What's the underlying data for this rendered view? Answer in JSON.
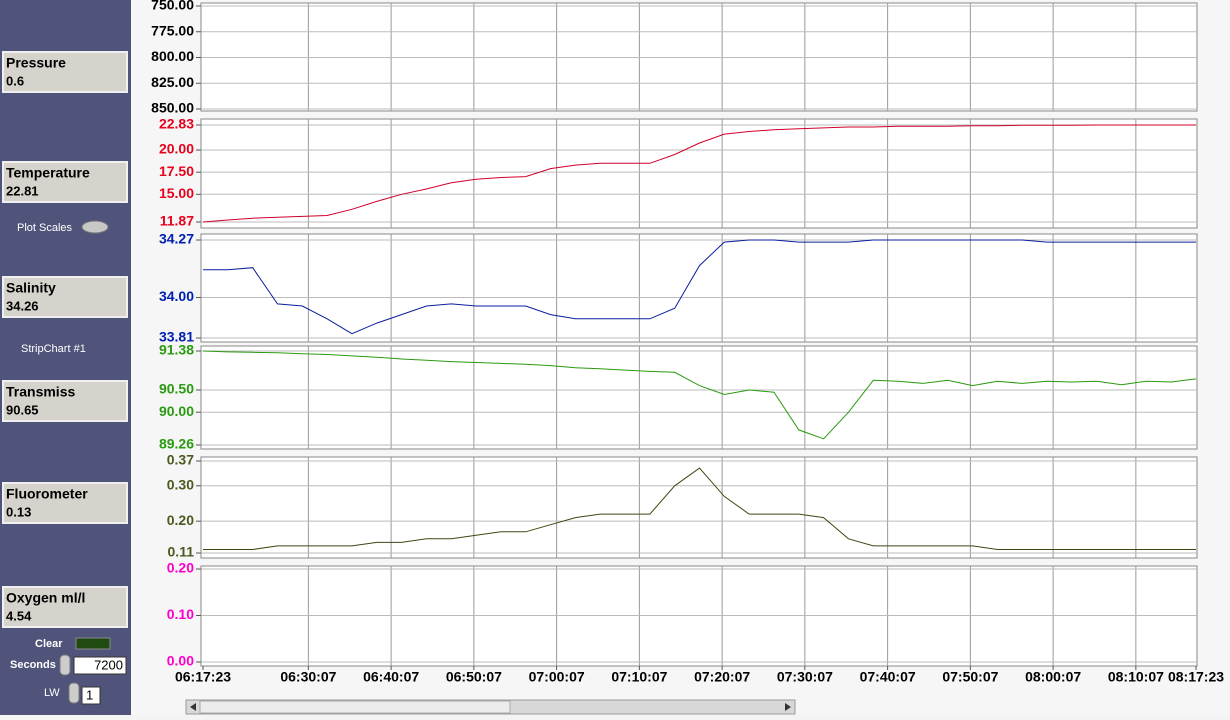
{
  "panel": {
    "readouts": [
      {
        "label": "Pressure",
        "value": 0.6
      },
      {
        "label": "Temperature",
        "value": 22.81
      },
      {
        "label": "Salinity",
        "value": 34.26
      },
      {
        "label": "Transmiss",
        "value": 90.65
      },
      {
        "label": "Fluorometer",
        "value": 0.13
      },
      {
        "label": "Oxygen ml/l",
        "value": 4.54
      }
    ],
    "plot_scales": "Plot Scales",
    "stripchart": "StripChart #1",
    "clear": "Clear",
    "seconds": "Seconds",
    "seconds_value": 7200,
    "lw": "LW",
    "lw_value": 1
  },
  "chart_data": [
    {
      "type": "line",
      "tick_color": "#000000",
      "xlim": [
        "06:17:23",
        "08:17:23"
      ],
      "ylim": [
        850,
        750
      ],
      "yticks": [
        {
          "value": 750,
          "label": "750.00"
        },
        {
          "value": 775,
          "label": "775.00"
        },
        {
          "value": 800,
          "label": "800.00"
        },
        {
          "value": 825,
          "label": "825.00"
        },
        {
          "value": 850,
          "label": "850.00"
        }
      ],
      "series": []
    },
    {
      "type": "line",
      "tick_color": "#e8001c",
      "xlim": [
        "06:17:23",
        "08:17:23"
      ],
      "ylim": [
        11.87,
        22.83
      ],
      "yticks": [
        11.87,
        {
          "value": 15,
          "label": "15.00"
        },
        {
          "value": 17.5,
          "label": "17.50"
        },
        {
          "value": 20,
          "label": "20.00"
        },
        22.83
      ],
      "x": [
        "06:17:23",
        "06:20:23",
        "06:23:23",
        "06:26:23",
        "06:29:23",
        "06:32:23",
        "06:35:23",
        "06:38:23",
        "06:41:23",
        "06:44:23",
        "06:47:23",
        "06:50:23",
        "06:53:23",
        "06:56:23",
        "06:59:23",
        "07:02:23",
        "07:05:23",
        "07:08:23",
        "07:11:23",
        "07:14:23",
        "07:17:23",
        "07:20:23",
        "07:23:23",
        "07:26:23",
        "07:29:23",
        "07:32:23",
        "07:35:23",
        "07:38:23",
        "07:41:23",
        "07:44:23",
        "07:47:23",
        "07:50:23",
        "07:53:23",
        "07:56:23",
        "07:59:23",
        "08:02:23",
        "08:05:23",
        "08:08:23",
        "08:11:23",
        "08:14:23",
        "08:17:23"
      ],
      "series": [
        {
          "color": "#d0002a",
          "values": [
            11.87,
            12.1,
            12.3,
            12.4,
            12.5,
            12.6,
            13.3,
            14.2,
            15,
            15.6,
            16.3,
            16.7,
            16.9,
            17,
            17.9,
            18.3,
            18.5,
            18.5,
            18.5,
            19.5,
            20.8,
            21.8,
            22.1,
            22.3,
            22.4,
            22.5,
            22.6,
            22.6,
            22.7,
            22.7,
            22.7,
            22.75,
            22.75,
            22.8,
            22.8,
            22.8,
            22.83,
            22.83,
            22.83,
            22.83,
            22.83
          ]
        }
      ]
    },
    {
      "type": "line",
      "tick_color": "#0020b0",
      "xlim": [
        "06:17:23",
        "08:17:23"
      ],
      "ylim": [
        33.81,
        34.27
      ],
      "yticks": [
        33.81,
        {
          "value": 34,
          "label": "34.00"
        },
        34.27
      ],
      "x": [
        "06:17:23",
        "06:20:23",
        "06:23:23",
        "06:26:23",
        "06:29:23",
        "06:32:23",
        "06:35:23",
        "06:38:23",
        "06:41:23",
        "06:44:23",
        "06:47:23",
        "06:50:23",
        "06:53:23",
        "06:56:23",
        "06:59:23",
        "07:02:23",
        "07:05:23",
        "07:08:23",
        "07:11:23",
        "07:14:23",
        "07:17:23",
        "07:20:23",
        "07:23:23",
        "07:26:23",
        "07:29:23",
        "07:32:23",
        "07:35:23",
        "07:38:23",
        "07:41:23",
        "07:44:23",
        "07:47:23",
        "07:50:23",
        "07:53:23",
        "07:56:23",
        "07:59:23",
        "08:02:23",
        "08:05:23",
        "08:08:23",
        "08:11:23",
        "08:14:23",
        "08:17:23"
      ],
      "series": [
        {
          "color": "#0a1ea0",
          "values": [
            34.13,
            34.13,
            34.14,
            33.97,
            33.96,
            33.9,
            33.83,
            33.88,
            33.92,
            33.96,
            33.97,
            33.96,
            33.96,
            33.96,
            33.92,
            33.9,
            33.9,
            33.9,
            33.9,
            33.95,
            34.15,
            34.26,
            34.27,
            34.27,
            34.26,
            34.26,
            34.26,
            34.27,
            34.27,
            34.27,
            34.27,
            34.27,
            34.27,
            34.27,
            34.26,
            34.26,
            34.26,
            34.26,
            34.26,
            34.26,
            34.26
          ]
        }
      ]
    },
    {
      "type": "line",
      "tick_color": "#2a9a10",
      "xlim": [
        "06:17:23",
        "08:17:23"
      ],
      "ylim": [
        89.26,
        91.38
      ],
      "yticks": [
        89.26,
        {
          "value": 90,
          "label": "90.00"
        },
        {
          "value": 90.5,
          "label": "90.50"
        },
        91.38
      ],
      "x": [
        "06:17:23",
        "06:20:23",
        "06:23:23",
        "06:26:23",
        "06:29:23",
        "06:32:23",
        "06:35:23",
        "06:38:23",
        "06:41:23",
        "06:44:23",
        "06:47:23",
        "06:50:23",
        "06:53:23",
        "06:56:23",
        "06:59:23",
        "07:02:23",
        "07:05:23",
        "07:08:23",
        "07:11:23",
        "07:14:23",
        "07:17:23",
        "07:20:23",
        "07:23:23",
        "07:26:23",
        "07:29:23",
        "07:32:23",
        "07:35:23",
        "07:38:23",
        "07:41:23",
        "07:44:23",
        "07:47:23",
        "07:50:23",
        "07:53:23",
        "07:56:23",
        "07:59:23",
        "08:02:23",
        "08:05:23",
        "08:08:23",
        "08:11:23",
        "08:14:23",
        "08:17:23"
      ],
      "series": [
        {
          "color": "#2a9a10",
          "values": [
            91.38,
            91.36,
            91.35,
            91.34,
            91.32,
            91.3,
            91.27,
            91.24,
            91.2,
            91.17,
            91.14,
            91.12,
            91.1,
            91.08,
            91.05,
            91,
            90.98,
            90.95,
            90.92,
            90.9,
            90.6,
            90.4,
            90.5,
            90.45,
            89.6,
            89.4,
            90,
            90.72,
            90.7,
            90.65,
            90.72,
            90.6,
            90.7,
            90.65,
            90.7,
            90.68,
            90.7,
            90.62,
            90.7,
            90.68,
            90.75
          ]
        }
      ]
    },
    {
      "type": "line",
      "tick_color": "#4a5a20",
      "xlim": [
        "06:17:23",
        "08:17:23"
      ],
      "ylim": [
        0.11,
        0.37
      ],
      "yticks": [
        0.11,
        {
          "value": 0.2,
          "label": "0.20"
        },
        {
          "value": 0.3,
          "label": "0.30"
        },
        0.37
      ],
      "x": [
        "06:17:23",
        "06:20:23",
        "06:23:23",
        "06:26:23",
        "06:29:23",
        "06:32:23",
        "06:35:23",
        "06:38:23",
        "06:41:23",
        "06:44:23",
        "06:47:23",
        "06:50:23",
        "06:53:23",
        "06:56:23",
        "06:59:23",
        "07:02:23",
        "07:05:23",
        "07:08:23",
        "07:11:23",
        "07:14:23",
        "07:17:23",
        "07:20:23",
        "07:23:23",
        "07:26:23",
        "07:29:23",
        "07:32:23",
        "07:35:23",
        "07:38:23",
        "07:41:23",
        "07:44:23",
        "07:47:23",
        "07:50:23",
        "07:53:23",
        "07:56:23",
        "07:59:23",
        "08:02:23",
        "08:05:23",
        "08:08:23",
        "08:11:23",
        "08:14:23",
        "08:17:23"
      ],
      "series": [
        {
          "color": "#3a4a10",
          "values": [
            0.12,
            0.12,
            0.12,
            0.13,
            0.13,
            0.13,
            0.13,
            0.14,
            0.14,
            0.15,
            0.15,
            0.16,
            0.17,
            0.17,
            0.19,
            0.21,
            0.22,
            0.22,
            0.22,
            0.3,
            0.35,
            0.27,
            0.22,
            0.22,
            0.22,
            0.21,
            0.15,
            0.13,
            0.13,
            0.13,
            0.13,
            0.13,
            0.12,
            0.12,
            0.12,
            0.12,
            0.12,
            0.12,
            0.12,
            0.12,
            0.12
          ]
        }
      ]
    },
    {
      "type": "line",
      "tick_color": "#ff00cc",
      "xlim": [
        "06:17:23",
        "08:17:23"
      ],
      "ylim": [
        0,
        0.2
      ],
      "yticks": [
        {
          "value": 0,
          "label": "0.00"
        },
        {
          "value": 0.1,
          "label": "0.10"
        },
        {
          "value": 0.2,
          "label": "0.20"
        }
      ],
      "xticks": [
        "06:17:23",
        "06:30:07",
        "06:40:07",
        "06:50:07",
        "07:00:07",
        "07:10:07",
        "07:20:07",
        "07:30:07",
        "07:40:07",
        "07:50:07",
        "08:00:07",
        "08:10:07",
        "08:17:23"
      ],
      "series": []
    }
  ]
}
